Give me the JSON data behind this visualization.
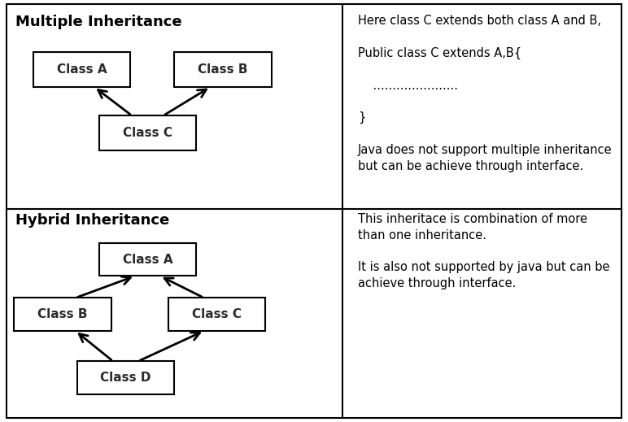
{
  "fig_width": 7.72,
  "fig_height": 5.19,
  "bg_color": "#ffffff",
  "sections": {
    "top_left_title": "Multiple Inheritance",
    "top_right_text": "Here class C extends both class A and B,\n\nPublic class C extends A,B{\n\n    ......................\n\n}\n\nJava does not support multiple inheritance\nbut can be achieve through interface.",
    "bottom_left_title": "Hybrid Inheritance",
    "bottom_right_text": "This inheritace is combination of more\nthan one inheritance.\n\nIt is also not supported by java but can be\nachieve through interface."
  },
  "title_fontsize": 13,
  "label_fontsize": 11,
  "text_fontsize": 10.5
}
